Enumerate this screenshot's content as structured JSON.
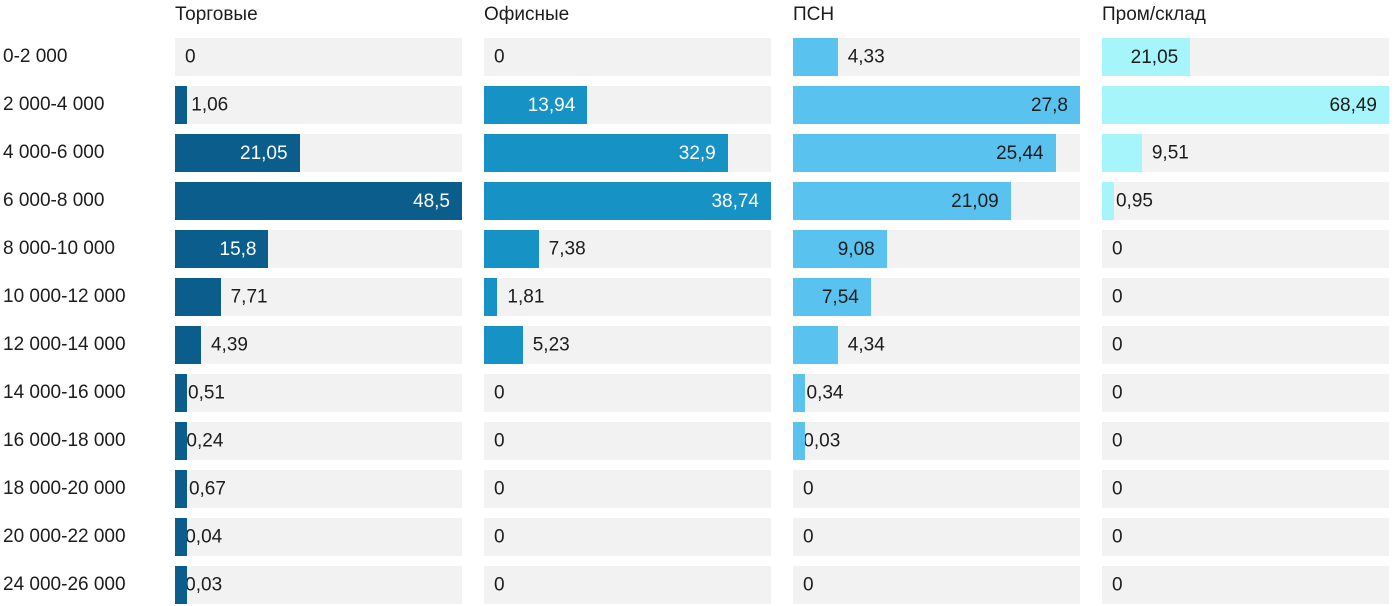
{
  "chart_data": {
    "type": "bar",
    "orientation": "horizontal",
    "title": "",
    "xlabel": "",
    "ylabel": "",
    "grid": false,
    "legend_position": "column-headers-top",
    "track_color": "#f2f2f3",
    "text_color": "#1c1c1c",
    "scaling": "each series scaled to its own max value",
    "number_format": "decimal-comma",
    "categories": [
      "0-2 000",
      "2 000-4 000",
      "4 000-6 000",
      "6 000-8 000",
      "8 000-10 000",
      "10 000-12 000",
      "12 000-14 000",
      "14 000-16 000",
      "16 000-18 000",
      "18 000-20 000",
      "20 000-22 000",
      "24 000-26 000"
    ],
    "series": [
      {
        "name": "Торговые",
        "color": "#0b5e8c",
        "inside_text": "#ffffff",
        "max": 48.5,
        "values": [
          0,
          1.06,
          21.05,
          48.5,
          15.8,
          7.71,
          4.39,
          0.51,
          0.24,
          0.67,
          0.04,
          0.03
        ]
      },
      {
        "name": "Офисные",
        "color": "#1692c5",
        "inside_text": "#ffffff",
        "max": 38.74,
        "values": [
          0,
          13.94,
          32.9,
          38.74,
          7.38,
          1.81,
          5.23,
          0,
          0,
          0,
          0,
          0
        ]
      },
      {
        "name": "ПСН",
        "color": "#59c2ef",
        "inside_text": "#1c1c1c",
        "max": 27.8,
        "values": [
          4.33,
          27.8,
          25.44,
          21.09,
          9.08,
          7.54,
          4.34,
          0.34,
          0.03,
          0,
          0,
          0
        ]
      },
      {
        "name": "Пром/склад",
        "color": "#a5f5fa",
        "inside_text": "#1c1c1c",
        "max": 68.49,
        "values": [
          21.05,
          68.49,
          9.51,
          0.95,
          0,
          0,
          0,
          0,
          0,
          0,
          0,
          0
        ]
      }
    ]
  }
}
